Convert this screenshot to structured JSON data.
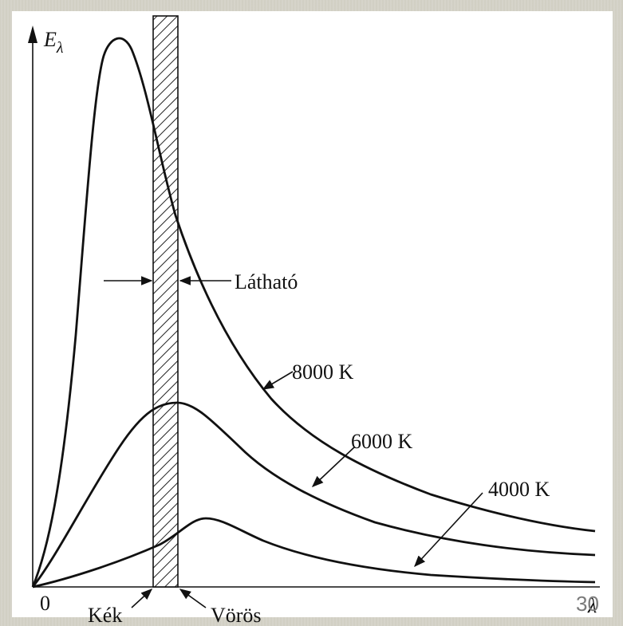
{
  "chart_data": {
    "type": "line",
    "ylabel": "E",
    "ylabel_sub": "λ",
    "xlabel": "λ",
    "origin_label": "0",
    "grid": false,
    "series": [
      {
        "name": "8000 K",
        "temperature_K": 8000
      },
      {
        "name": "6000 K",
        "temperature_K": 6000
      },
      {
        "name": "4000 K",
        "temperature_K": 4000
      }
    ],
    "visible_band_label": "Látható",
    "band_edges": {
      "blue": "Kék",
      "red": "Vörös"
    }
  },
  "page_number": "30"
}
